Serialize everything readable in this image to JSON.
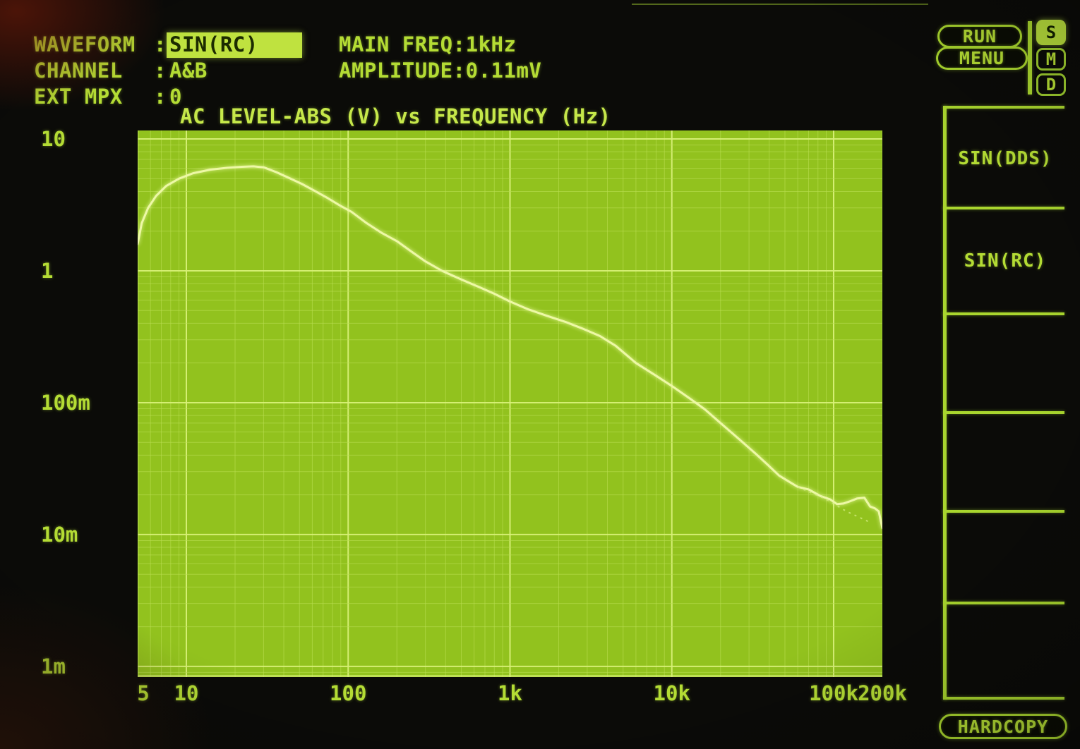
{
  "header": {
    "rows": [
      {
        "label": "WAVEFORM",
        "separator": ":",
        "value": "SIN(RC)",
        "highlighted": true
      },
      {
        "label": "CHANNEL",
        "separator": ":",
        "value": "A&B",
        "highlighted": false
      },
      {
        "label": "EXT MPX",
        "separator": ":",
        "value": "0",
        "highlighted": false
      }
    ],
    "readouts": [
      {
        "label": "MAIN FREQ:",
        "value": "1kHz"
      },
      {
        "label": "AMPLITUDE:",
        "value": "0.11mV"
      }
    ]
  },
  "top_right": {
    "run_label": "RUN",
    "menu_label": "MENU",
    "indicators": [
      {
        "letter": "S",
        "active": true
      },
      {
        "letter": "M",
        "active": false
      },
      {
        "letter": "D",
        "active": false
      }
    ]
  },
  "softkeys": {
    "items": [
      {
        "label": "SIN(DDS)"
      },
      {
        "label": "SIN(RC)"
      },
      {
        "label": ""
      },
      {
        "label": ""
      },
      {
        "label": ""
      },
      {
        "label": ""
      }
    ],
    "hardcopy_label": "HARDCOPY"
  },
  "chart_data": {
    "type": "line",
    "title": "AC LEVEL-ABS (V) vs FREQUENCY (Hz)",
    "xlabel": "FREQUENCY (Hz)",
    "ylabel": "AC LEVEL-ABS (V)",
    "x_scale": "log",
    "y_scale": "log",
    "x_range": [
      5,
      200000
    ],
    "y_range": [
      0.00083,
      11.6
    ],
    "grid": true,
    "x_ticks": [
      {
        "label": "5",
        "f": 5
      },
      {
        "label": "10",
        "f": 10
      },
      {
        "label": "100",
        "f": 100
      },
      {
        "label": "1k",
        "f": 1000
      },
      {
        "label": "10k",
        "f": 10000
      },
      {
        "label": "100k",
        "f": 100000
      },
      {
        "label": "200k",
        "f": 200000
      }
    ],
    "y_ticks": [
      {
        "label": "10",
        "v": 10
      },
      {
        "label": "1",
        "v": 1
      },
      {
        "label": "100m",
        "v": 0.1
      },
      {
        "label": "10m",
        "v": 0.01
      },
      {
        "label": "1m",
        "v": 0.001
      }
    ],
    "series": [
      {
        "name": "ac-level-trace",
        "style": "solid",
        "points": [
          [
            5,
            1.6
          ],
          [
            5.3,
            2.3
          ],
          [
            5.8,
            3.0
          ],
          [
            6.5,
            3.7
          ],
          [
            7.5,
            4.4
          ],
          [
            9,
            5.0
          ],
          [
            11,
            5.5
          ],
          [
            14,
            5.85
          ],
          [
            18,
            6.05
          ],
          [
            22,
            6.15
          ],
          [
            26,
            6.2
          ],
          [
            30,
            6.1
          ],
          [
            36,
            5.6
          ],
          [
            44,
            5.0
          ],
          [
            52,
            4.55
          ],
          [
            63,
            4.0
          ],
          [
            75,
            3.55
          ],
          [
            90,
            3.1
          ],
          [
            105,
            2.8
          ],
          [
            130,
            2.3
          ],
          [
            160,
            1.95
          ],
          [
            200,
            1.68
          ],
          [
            250,
            1.38
          ],
          [
            300,
            1.18
          ],
          [
            380,
            1.0
          ],
          [
            500,
            0.86
          ],
          [
            650,
            0.75
          ],
          [
            800,
            0.67
          ],
          [
            1000,
            0.585
          ],
          [
            1300,
            0.51
          ],
          [
            1700,
            0.455
          ],
          [
            2200,
            0.41
          ],
          [
            2800,
            0.365
          ],
          [
            3600,
            0.32
          ],
          [
            4500,
            0.27
          ],
          [
            6000,
            0.2
          ],
          [
            8000,
            0.16
          ],
          [
            10000,
            0.134
          ],
          [
            13000,
            0.107
          ],
          [
            16000,
            0.089
          ],
          [
            20000,
            0.07
          ],
          [
            26000,
            0.053
          ],
          [
            33000,
            0.041
          ],
          [
            39000,
            0.034
          ],
          [
            46000,
            0.028
          ],
          [
            55000,
            0.0245
          ],
          [
            60000,
            0.023
          ],
          [
            70000,
            0.022
          ],
          [
            83000,
            0.0196
          ],
          [
            95000,
            0.0185
          ],
          [
            105000,
            0.017
          ],
          [
            115000,
            0.0172
          ],
          [
            125000,
            0.0178
          ],
          [
            140000,
            0.0188
          ],
          [
            155000,
            0.019
          ],
          [
            168000,
            0.0163
          ],
          [
            180000,
            0.0158
          ],
          [
            190000,
            0.015
          ],
          [
            200000,
            0.0112
          ]
        ]
      },
      {
        "name": "ghost-trace",
        "style": "dashed",
        "points": [
          [
            60000,
            0.023
          ],
          [
            90000,
            0.0185
          ],
          [
            120000,
            0.015
          ],
          [
            165000,
            0.0125
          ]
        ]
      }
    ],
    "colors": {
      "plot_background": "#92c21e",
      "grid_minor": "#b9de50",
      "grid_major": "#d8f178",
      "trace": "#edf8a6",
      "text": "#b4dc34",
      "highlight_background": "#bfe23f"
    }
  }
}
